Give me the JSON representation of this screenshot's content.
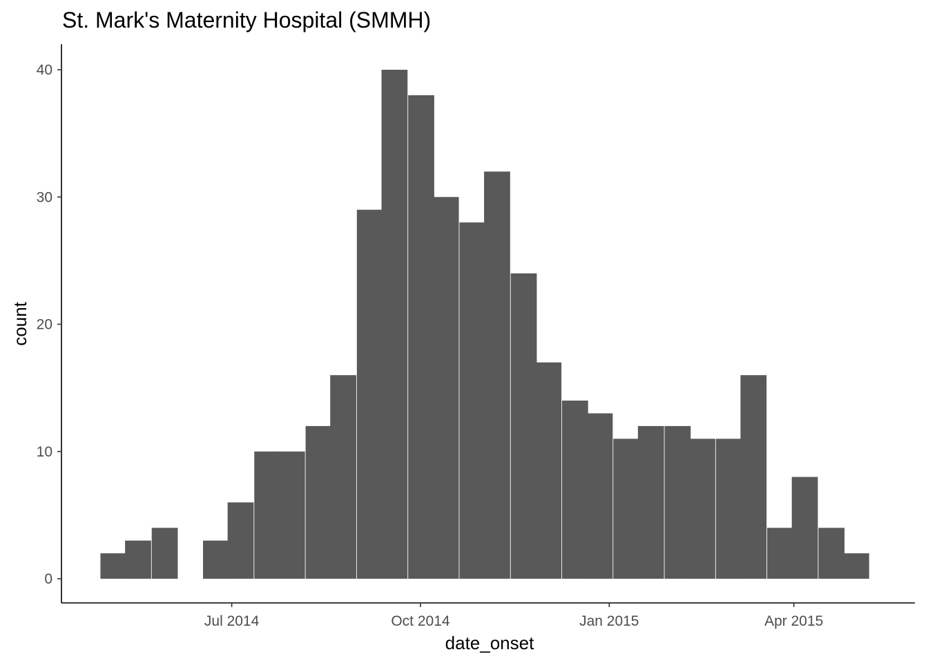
{
  "chart_data": {
    "type": "bar",
    "title": "St. Mark's Maternity Hospital (SMMH)",
    "xlabel": "date_onset",
    "ylabel": "count",
    "x_ticks": [
      {
        "label": "Jul 2014",
        "date": "2014-07-01"
      },
      {
        "label": "Oct 2014",
        "date": "2014-10-01"
      },
      {
        "label": "Jan 2015",
        "date": "2015-01-01"
      },
      {
        "label": "Apr 2015",
        "date": "2015-04-01"
      }
    ],
    "y_ticks": [
      0,
      10,
      20,
      30,
      40
    ],
    "ylim": [
      0,
      42
    ],
    "xlim": [
      "2014-04-09",
      "2015-05-30"
    ],
    "bin_width_days": 12.5,
    "bins": [
      {
        "start": "2014-04-28",
        "count": 2
      },
      {
        "start": "2014-05-10",
        "count": 3
      },
      {
        "start": "2014-05-23",
        "count": 4
      },
      {
        "start": "2014-06-04",
        "count": 0
      },
      {
        "start": "2014-06-17",
        "count": 3
      },
      {
        "start": "2014-06-29",
        "count": 6
      },
      {
        "start": "2014-07-12",
        "count": 10
      },
      {
        "start": "2014-07-24",
        "count": 10
      },
      {
        "start": "2014-08-06",
        "count": 12
      },
      {
        "start": "2014-08-18",
        "count": 16
      },
      {
        "start": "2014-08-31",
        "count": 29
      },
      {
        "start": "2014-09-12",
        "count": 40
      },
      {
        "start": "2014-09-25",
        "count": 38
      },
      {
        "start": "2014-10-07",
        "count": 30
      },
      {
        "start": "2014-10-20",
        "count": 28
      },
      {
        "start": "2014-11-01",
        "count": 32
      },
      {
        "start": "2014-11-14",
        "count": 24
      },
      {
        "start": "2014-11-26",
        "count": 17
      },
      {
        "start": "2014-12-09",
        "count": 14
      },
      {
        "start": "2014-12-21",
        "count": 13
      },
      {
        "start": "2015-01-03",
        "count": 11
      },
      {
        "start": "2015-01-15",
        "count": 12
      },
      {
        "start": "2015-01-28",
        "count": 12
      },
      {
        "start": "2015-02-09",
        "count": 11
      },
      {
        "start": "2015-02-22",
        "count": 11
      },
      {
        "start": "2015-03-06",
        "count": 16
      },
      {
        "start": "2015-03-19",
        "count": 4
      },
      {
        "start": "2015-03-31",
        "count": 8
      },
      {
        "start": "2015-04-13",
        "count": 4
      },
      {
        "start": "2015-04-25",
        "count": 2
      }
    ],
    "bar_color": "#595959",
    "grid": false,
    "legend": "none"
  }
}
